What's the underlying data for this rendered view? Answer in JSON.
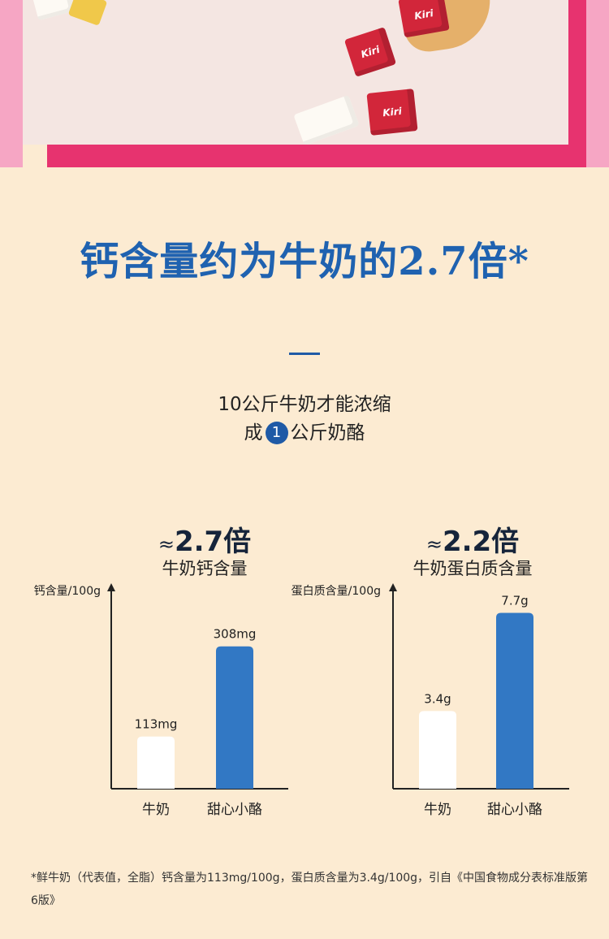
{
  "headline": "钙含量约为牛奶的2.7倍*",
  "subtitle": {
    "line1": "10公斤牛奶才能浓缩",
    "line2_prefix": "成",
    "line2_number": "1",
    "line2_suffix": "公斤奶酪"
  },
  "banner": {
    "cube_brand": "Kiri"
  },
  "colors": {
    "headline": "#1f62b0",
    "bar_cheese": "#3278c4",
    "bar_milk": "#ffffff",
    "background": "#fcebd2"
  },
  "chart_data": [
    {
      "type": "bar",
      "ratio_prefix": "≈",
      "ratio": "2.7倍",
      "subtitle": "牛奶钙含量",
      "ylabel": "钙含量/100g",
      "categories": [
        "牛奶",
        "甜心小酪"
      ],
      "values": [
        113,
        308
      ],
      "value_labels": [
        "113mg",
        "308mg"
      ],
      "unit": "mg",
      "ylim": [
        0,
        420
      ],
      "grid": false
    },
    {
      "type": "bar",
      "ratio_prefix": "≈",
      "ratio": "2.2倍",
      "subtitle": "牛奶蛋白质含量",
      "ylabel": "蛋白质含量/100g",
      "categories": [
        "牛奶",
        "甜心小酪"
      ],
      "values": [
        3.4,
        7.7
      ],
      "value_labels": [
        "3.4g",
        "7.7g"
      ],
      "unit": "g",
      "ylim": [
        0,
        8.5
      ],
      "grid": false
    }
  ],
  "footnote": "*鲜牛奶（代表值，全脂）钙含量为113mg/100g，蛋白质含量为3.4g/100g，引自《中国食物成分表标准版第6版》"
}
